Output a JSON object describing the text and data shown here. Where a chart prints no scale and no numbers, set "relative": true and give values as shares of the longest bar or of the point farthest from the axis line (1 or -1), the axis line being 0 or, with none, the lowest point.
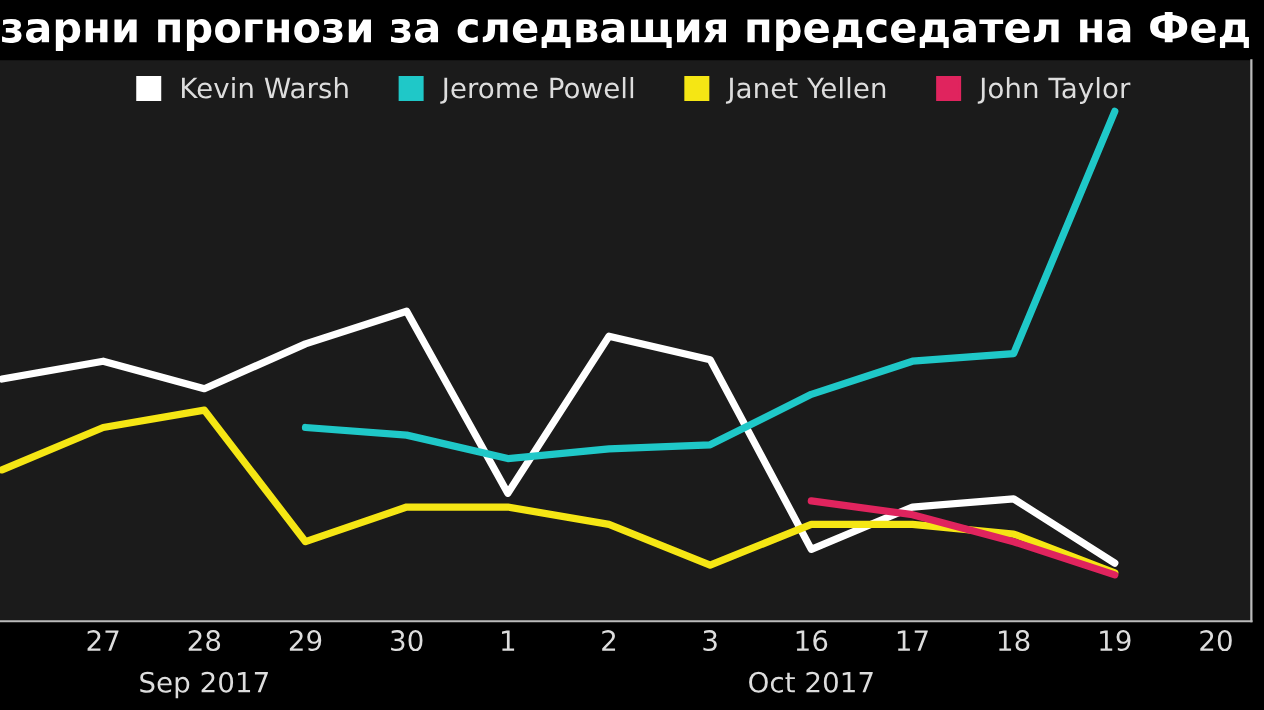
{
  "chart_data": {
    "type": "line",
    "title": "зарни прогнози за следващия председател на Фед",
    "relative": true,
    "categories": [
      null,
      "27",
      "28",
      "29",
      "30",
      "1",
      "2",
      "3",
      "16",
      "17",
      "18",
      "19",
      "20"
    ],
    "series": [
      {
        "name": "Kevin Warsh",
        "color": "#ffffff",
        "values": [
          0.475,
          0.51,
          0.456,
          0.544,
          0.608,
          0.251,
          0.559,
          0.513,
          0.141,
          0.224,
          0.24,
          0.114,
          null
        ]
      },
      {
        "name": "Jerome Powell",
        "color": "#1fc8c8",
        "values": [
          null,
          null,
          null,
          0.38,
          0.365,
          0.319,
          0.338,
          0.346,
          0.445,
          0.51,
          0.525,
          1,
          null
        ]
      },
      {
        "name": "Janet Yellen",
        "color": "#f5e614",
        "values": [
          0.297,
          0.38,
          0.414,
          0.156,
          0.224,
          0.224,
          0.19,
          0.11,
          0.19,
          0.19,
          0.171,
          0.095,
          null
        ]
      },
      {
        "name": "John Taylor",
        "color": "#e0245e",
        "values": [
          null,
          null,
          null,
          null,
          null,
          null,
          null,
          null,
          0.236,
          0.209,
          0.156,
          0.091,
          null
        ]
      }
    ],
    "annotations": [
      "Sep 2017",
      "Oct 2017"
    ],
    "legend": "top",
    "marker": "none",
    "line_style": "solid"
  }
}
